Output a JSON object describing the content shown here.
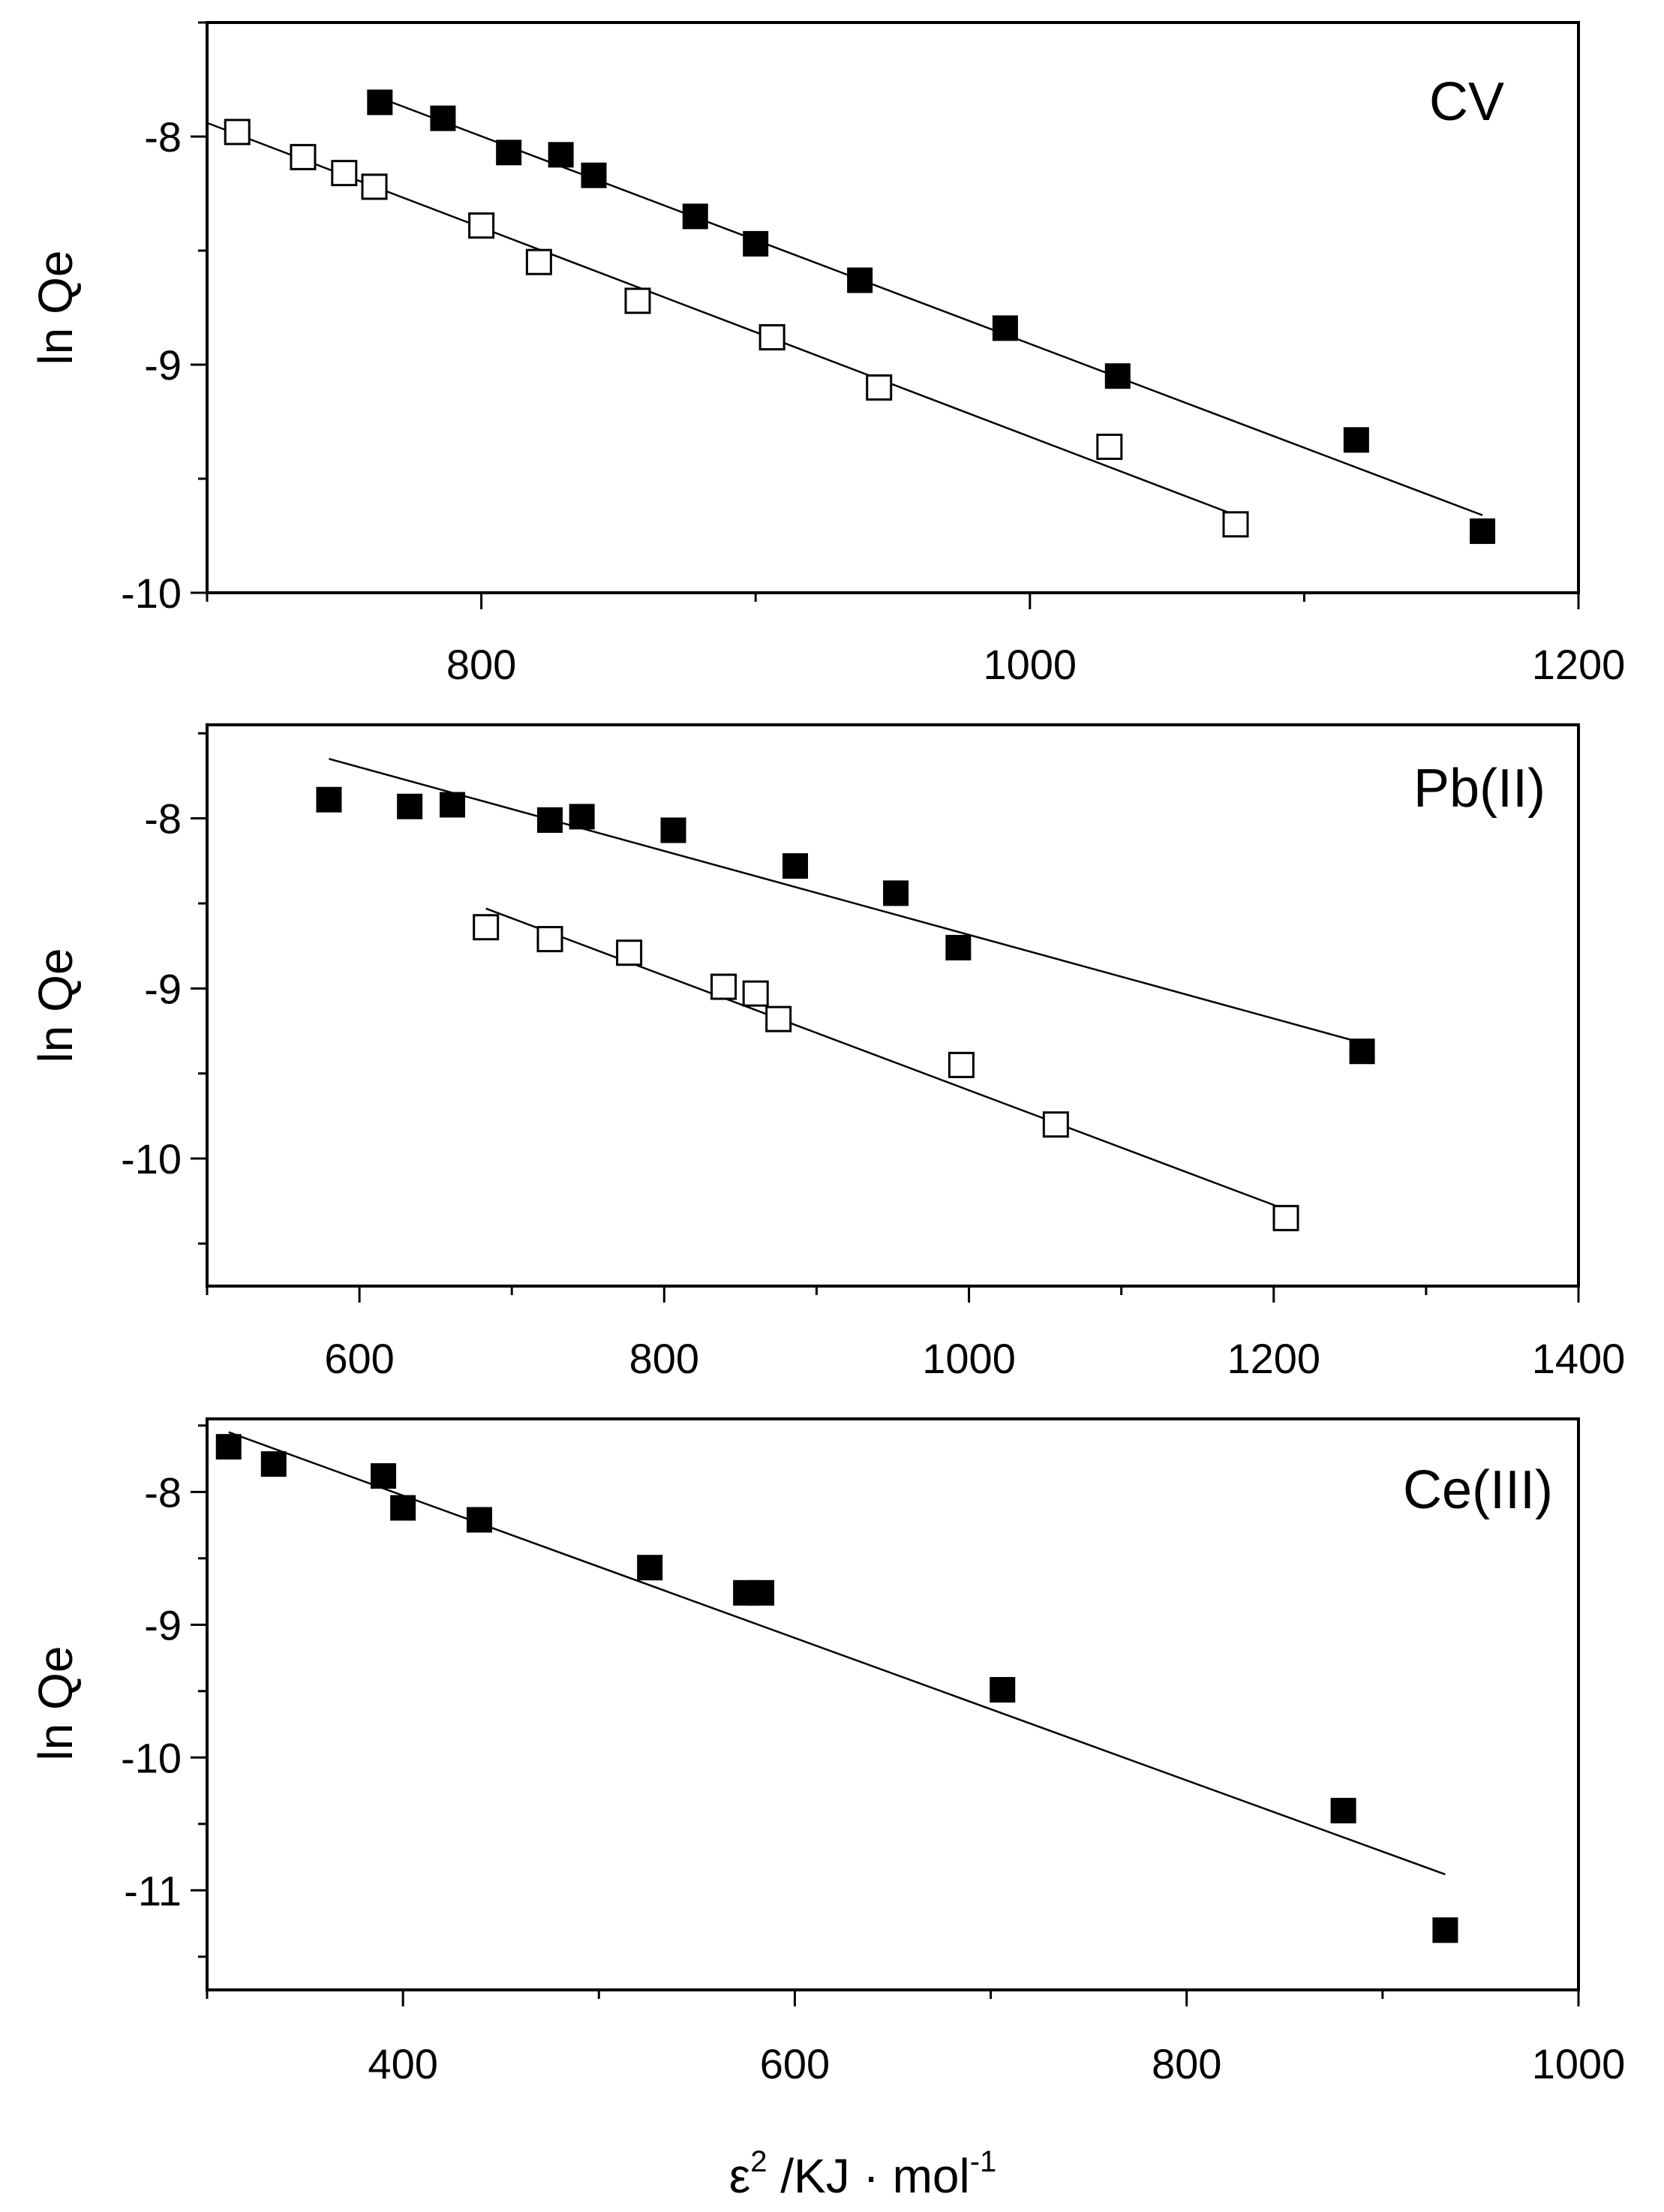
{
  "x_title": {
    "epsilon": "ε",
    "sup": "2",
    "main": " /KJ · mol",
    "exp": "-1"
  },
  "chart_data": [
    {
      "type": "scatter",
      "title": "CV",
      "ylabel": "ln Qe",
      "xlim": [
        700,
        1200
      ],
      "ylim": [
        -10,
        -7.5
      ],
      "xticks": [
        800,
        1000,
        1200
      ],
      "yticks": [
        -8,
        -9,
        -10
      ],
      "grid": false,
      "series": [
        {
          "name": "filled",
          "marker": "filled-square",
          "points": [
            [
              763,
              -7.85
            ],
            [
              786,
              -7.92
            ],
            [
              810,
              -8.07
            ],
            [
              829,
              -8.08
            ],
            [
              841,
              -8.17
            ],
            [
              878,
              -8.35
            ],
            [
              900,
              -8.47
            ],
            [
              938,
              -8.63
            ],
            [
              991,
              -8.84
            ],
            [
              1032,
              -9.05
            ],
            [
              1119,
              -9.33
            ],
            [
              1165,
              -9.73
            ]
          ],
          "fit": [
            [
              763,
              -7.83
            ],
            [
              1165,
              -9.66
            ]
          ]
        },
        {
          "name": "open",
          "marker": "open-square",
          "points": [
            [
              711,
              -7.98
            ],
            [
              735,
              -8.09
            ],
            [
              750,
              -8.16
            ],
            [
              761,
              -8.22
            ],
            [
              800,
              -8.39
            ],
            [
              821,
              -8.55
            ],
            [
              857,
              -8.72
            ],
            [
              906,
              -8.88
            ],
            [
              945,
              -9.1
            ],
            [
              1029,
              -9.36
            ],
            [
              1075,
              -9.7
            ]
          ],
          "fit": [
            [
              700,
              -7.94
            ],
            [
              1075,
              -9.66
            ]
          ]
        }
      ]
    },
    {
      "type": "scatter",
      "title": "Pb(II)",
      "ylabel": "ln Qe",
      "xlim": [
        500,
        1400
      ],
      "ylim": [
        -10.75,
        -7.45
      ],
      "xticks": [
        600,
        800,
        1000,
        1200,
        1400
      ],
      "yticks": [
        -8,
        -9,
        -10
      ],
      "grid": false,
      "series": [
        {
          "name": "filled",
          "marker": "filled-square",
          "points": [
            [
              580,
              -7.89
            ],
            [
              633,
              -7.93
            ],
            [
              661,
              -7.92
            ],
            [
              725,
              -8.01
            ],
            [
              746,
              -7.99
            ],
            [
              806,
              -8.07
            ],
            [
              886,
              -8.28
            ],
            [
              952,
              -8.44
            ],
            [
              993,
              -8.76
            ],
            [
              1258,
              -9.37
            ]
          ],
          "fit": [
            [
              580,
              -7.65
            ],
            [
              1258,
              -9.32
            ]
          ]
        },
        {
          "name": "open",
          "marker": "open-square",
          "points": [
            [
              683,
              -8.64
            ],
            [
              725,
              -8.71
            ],
            [
              777,
              -8.79
            ],
            [
              839,
              -8.99
            ],
            [
              860,
              -9.03
            ],
            [
              875,
              -9.18
            ],
            [
              995,
              -9.45
            ],
            [
              1057,
              -9.8
            ],
            [
              1208,
              -10.35
            ]
          ],
          "fit": [
            [
              683,
              -8.53
            ],
            [
              1208,
              -10.3
            ]
          ]
        }
      ]
    },
    {
      "type": "scatter",
      "title": "Ce(III)",
      "ylabel": "ln Qe",
      "xlim": [
        300,
        1000
      ],
      "ylim": [
        -11.75,
        -7.45
      ],
      "xticks": [
        400,
        600,
        800,
        1000
      ],
      "yticks": [
        -8,
        -9,
        -10,
        -11
      ],
      "grid": false,
      "series": [
        {
          "name": "filled",
          "marker": "filled-square",
          "points": [
            [
              311,
              -7.66
            ],
            [
              334,
              -7.79
            ],
            [
              390,
              -7.88
            ],
            [
              400,
              -8.12
            ],
            [
              439,
              -8.21
            ],
            [
              526,
              -8.57
            ],
            [
              575,
              -8.76
            ],
            [
              583,
              -8.76
            ],
            [
              706,
              -9.49
            ],
            [
              880,
              -10.4
            ],
            [
              932,
              -11.3
            ]
          ],
          "fit": [
            [
              311,
              -7.55
            ],
            [
              932,
              -10.88
            ]
          ]
        }
      ]
    }
  ]
}
